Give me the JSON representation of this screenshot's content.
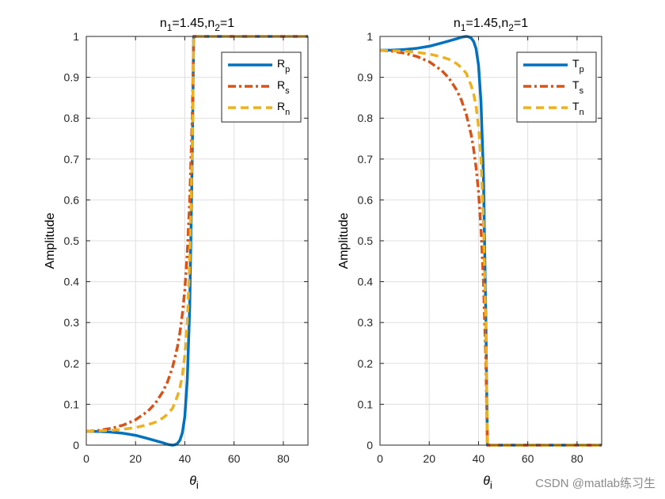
{
  "watermark": "CSDN @matlab练习生",
  "chart_data": [
    {
      "type": "line",
      "title": "n1=1.45,n2=1",
      "title_parts": {
        "a": "n",
        "a_sub": "1",
        "b": "=1.45,n",
        "b_sub": "2",
        "c": "=1"
      },
      "xlabel": "θi",
      "xlabel_parts": {
        "sym": "θ",
        "sub": "i"
      },
      "ylabel": "Amplitude",
      "xlim": [
        0,
        90
      ],
      "ylim": [
        0,
        1
      ],
      "xticks": [
        0,
        20,
        40,
        60,
        80
      ],
      "yticks": [
        0,
        0.1,
        0.2,
        0.3,
        0.4,
        0.5,
        0.6,
        0.7,
        0.8,
        0.9,
        1
      ],
      "grid": true,
      "legend_position": "top-right",
      "series": [
        {
          "name": "Rp",
          "label_main": "R",
          "label_sub": "p",
          "color": "#0072BD",
          "dash": "solid",
          "x": [
            0,
            5,
            10,
            15,
            20,
            25,
            28,
            31,
            33,
            35,
            36,
            37,
            38,
            39,
            40,
            41,
            42,
            43,
            43.6,
            44,
            50,
            60,
            70,
            80,
            90
          ],
          "y": [
            0.034,
            0.0335,
            0.032,
            0.029,
            0.024,
            0.016,
            0.011,
            0.006,
            0.002,
            0.0,
            0.001,
            0.004,
            0.012,
            0.03,
            0.07,
            0.16,
            0.34,
            0.7,
            1.0,
            1.0,
            1.0,
            1.0,
            1.0,
            1.0,
            1.0
          ]
        },
        {
          "name": "Rs",
          "label_main": "R",
          "label_sub": "s",
          "color": "#D95319",
          "dash": "dashdot",
          "x": [
            0,
            5,
            10,
            15,
            20,
            25,
            28,
            31,
            33,
            35,
            37,
            38,
            39,
            40,
            41,
            42,
            43,
            43.6,
            44,
            50,
            60,
            70,
            80,
            90
          ],
          "y": [
            0.034,
            0.036,
            0.041,
            0.049,
            0.062,
            0.083,
            0.102,
            0.13,
            0.155,
            0.19,
            0.24,
            0.275,
            0.32,
            0.38,
            0.47,
            0.6,
            0.8,
            1.0,
            1.0,
            1.0,
            1.0,
            1.0,
            1.0,
            1.0
          ]
        },
        {
          "name": "Rn",
          "label_main": "R",
          "label_sub": "n",
          "color": "#EDB120",
          "dash": "dashed",
          "x": [
            0,
            5,
            10,
            15,
            20,
            25,
            28,
            31,
            33,
            35,
            37,
            38,
            39,
            40,
            41,
            42,
            43,
            43.6,
            44,
            50,
            60,
            70,
            80,
            90
          ],
          "y": [
            0.034,
            0.035,
            0.036,
            0.039,
            0.043,
            0.05,
            0.056,
            0.066,
            0.076,
            0.09,
            0.12,
            0.14,
            0.17,
            0.22,
            0.3,
            0.45,
            0.72,
            1.0,
            1.0,
            1.0,
            1.0,
            1.0,
            1.0,
            1.0
          ]
        }
      ],
      "legend_entries": [
        "Rp",
        "Rs",
        "Rn"
      ]
    },
    {
      "type": "line",
      "title": "n1=1.45,n2=1",
      "title_parts": {
        "a": "n",
        "a_sub": "1",
        "b": "=1.45,n",
        "b_sub": "2",
        "c": "=1"
      },
      "xlabel": "θi",
      "xlabel_parts": {
        "sym": "θ",
        "sub": "i"
      },
      "ylabel": "Amplitude",
      "xlim": [
        0,
        90
      ],
      "ylim": [
        0,
        1
      ],
      "xticks": [
        0,
        20,
        40,
        60,
        80
      ],
      "yticks": [
        0,
        0.1,
        0.2,
        0.3,
        0.4,
        0.5,
        0.6,
        0.7,
        0.8,
        0.9,
        1
      ],
      "grid": true,
      "legend_position": "top-right",
      "series": [
        {
          "name": "Tp",
          "label_main": "T",
          "label_sub": "p",
          "color": "#0072BD",
          "dash": "solid",
          "x": [
            0,
            5,
            10,
            15,
            20,
            25,
            28,
            31,
            33,
            35,
            36,
            37,
            38,
            39,
            40,
            41,
            42,
            43,
            43.6,
            44,
            50,
            60,
            70,
            80,
            90
          ],
          "y": [
            0.966,
            0.9665,
            0.968,
            0.971,
            0.976,
            0.984,
            0.989,
            0.994,
            0.998,
            1.0,
            0.999,
            0.996,
            0.988,
            0.97,
            0.93,
            0.84,
            0.66,
            0.3,
            0.0,
            0.0,
            0.0,
            0.0,
            0.0,
            0.0,
            0.0
          ]
        },
        {
          "name": "Ts",
          "label_main": "T",
          "label_sub": "s",
          "color": "#D95319",
          "dash": "dashdot",
          "x": [
            0,
            5,
            10,
            15,
            20,
            25,
            28,
            31,
            33,
            35,
            37,
            38,
            39,
            40,
            41,
            42,
            43,
            43.6,
            44,
            50,
            60,
            70,
            80,
            90
          ],
          "y": [
            0.966,
            0.964,
            0.959,
            0.951,
            0.938,
            0.917,
            0.898,
            0.87,
            0.845,
            0.81,
            0.76,
            0.725,
            0.68,
            0.62,
            0.53,
            0.4,
            0.2,
            0.0,
            0.0,
            0.0,
            0.0,
            0.0,
            0.0,
            0.0
          ]
        },
        {
          "name": "Tn",
          "label_main": "T",
          "label_sub": "n",
          "color": "#EDB120",
          "dash": "dashed",
          "x": [
            0,
            5,
            10,
            15,
            20,
            25,
            28,
            31,
            33,
            35,
            37,
            38,
            39,
            40,
            41,
            42,
            43,
            43.6,
            44,
            50,
            60,
            70,
            80,
            90
          ],
          "y": [
            0.966,
            0.965,
            0.964,
            0.961,
            0.957,
            0.95,
            0.944,
            0.934,
            0.924,
            0.91,
            0.88,
            0.86,
            0.83,
            0.78,
            0.7,
            0.55,
            0.28,
            0.0,
            0.0,
            0.0,
            0.0,
            0.0,
            0.0,
            0.0
          ]
        }
      ],
      "legend_entries": [
        "Tp",
        "Ts",
        "Tn"
      ]
    }
  ]
}
